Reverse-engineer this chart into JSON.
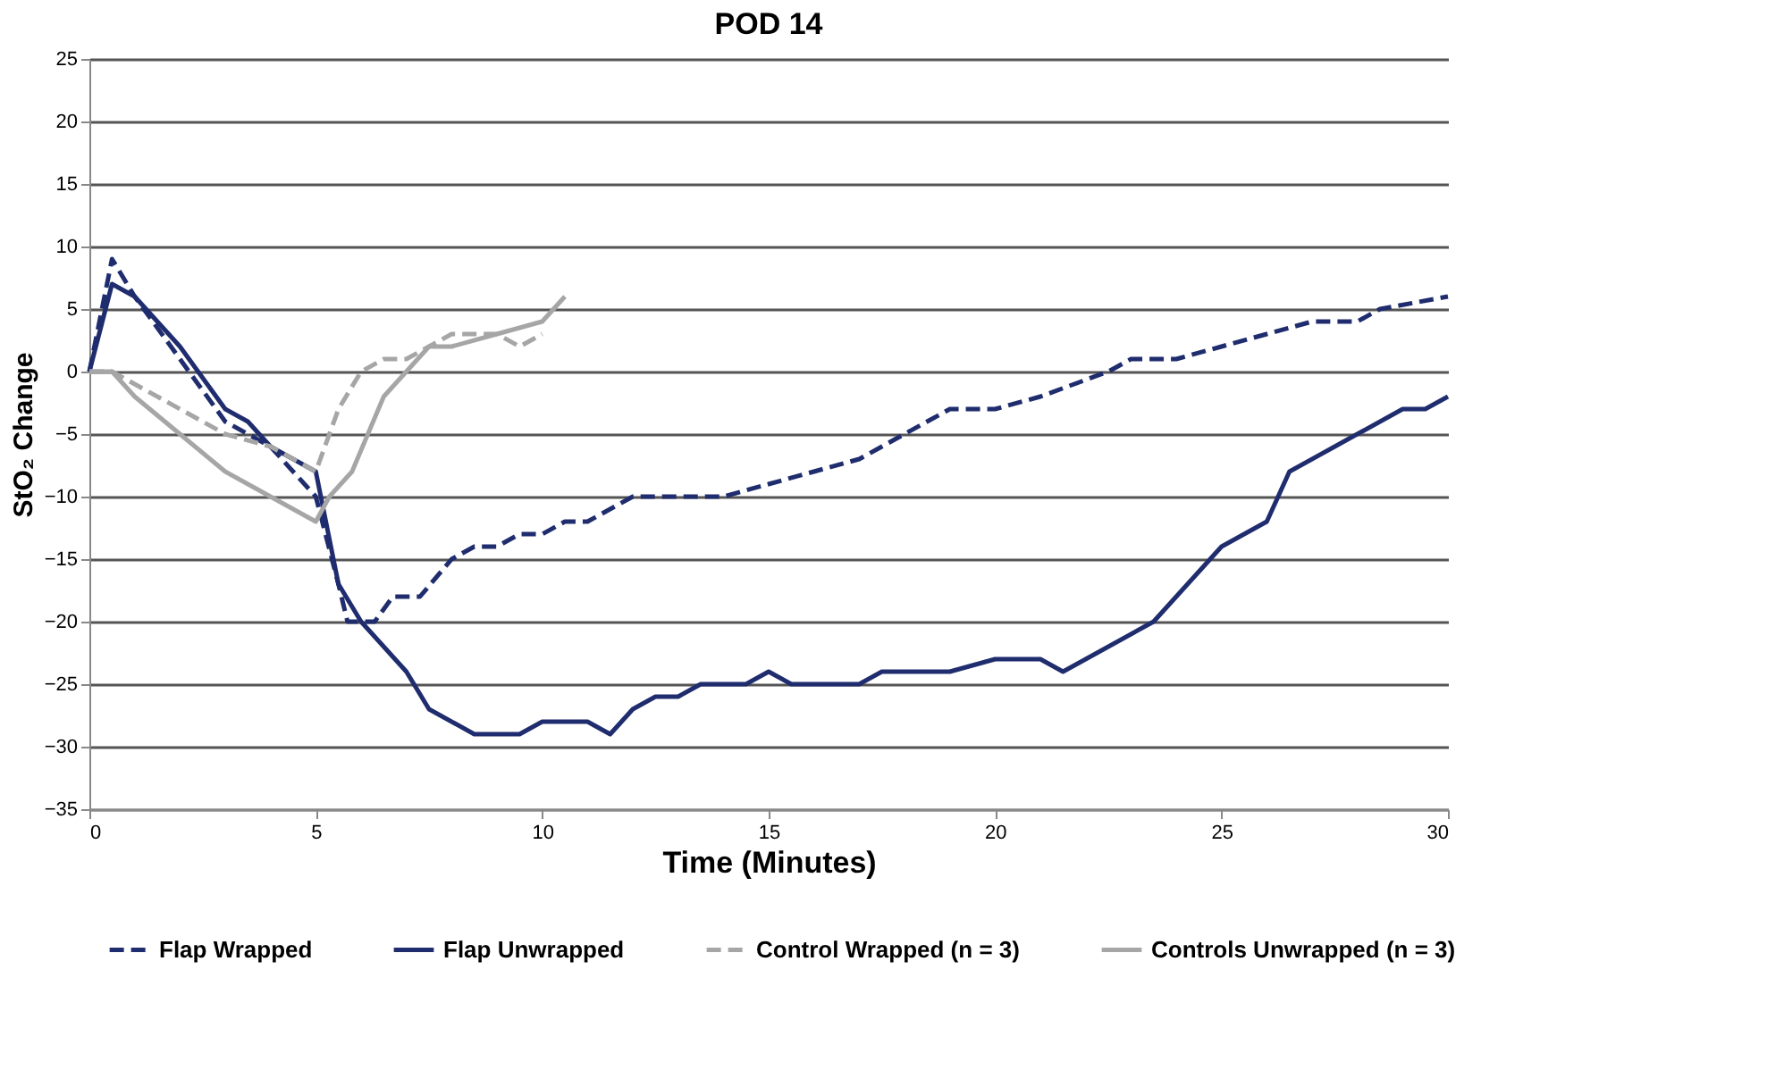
{
  "chart_data": {
    "type": "line",
    "title": "POD 14",
    "xlabel": "Time (Minutes)",
    "ylabel": "StO₂ Change",
    "xlim": [
      0,
      30
    ],
    "xticks": [
      0,
      5,
      10,
      15,
      20,
      25,
      30
    ],
    "ylim": [
      -35,
      25
    ],
    "yticks": [
      -35,
      -30,
      -25,
      -20,
      -15,
      -10,
      -5,
      0,
      5,
      10,
      15,
      20,
      25
    ],
    "grid": "y",
    "legend": "bottom",
    "marker": "none",
    "series": [
      {
        "name": "Flap Wrapped",
        "color": "#1f2d6e",
        "line_style": "dashed",
        "x": [
          0,
          0.5,
          1,
          2,
          3,
          4,
          5,
          5.5,
          5.7,
          6.3,
          6.7,
          7.3,
          8,
          8.5,
          9,
          9.5,
          10,
          10.5,
          11,
          12,
          14,
          15,
          16,
          17,
          17.5,
          19,
          20,
          21,
          22.5,
          23,
          24,
          25,
          26,
          27,
          28,
          28.5,
          30
        ],
        "values": [
          0,
          9,
          6,
          1,
          -4,
          -6,
          -10,
          -17,
          -20,
          -20,
          -18,
          -18,
          -15,
          -14,
          -14,
          -13,
          -13,
          -12,
          -12,
          -10,
          -10,
          -9,
          -8,
          -7,
          -6,
          -3,
          -3,
          -2,
          0,
          1,
          1,
          2,
          3,
          4,
          4,
          5,
          6
        ]
      },
      {
        "name": "Flap Unwrapped",
        "color": "#1f2d6e",
        "line_style": "solid",
        "x": [
          0,
          0.5,
          1,
          2,
          3,
          3.5,
          4,
          5,
          5.5,
          6,
          7,
          7.5,
          8.5,
          9.5,
          10,
          11,
          11.5,
          12,
          12.5,
          13,
          13.5,
          14.5,
          15,
          15.5,
          17,
          17.5,
          19,
          20,
          21,
          21.5,
          23.5,
          25,
          26,
          26.5,
          27.5,
          29,
          29.5,
          30
        ],
        "values": [
          0,
          7,
          6,
          2,
          -3,
          -4,
          -6,
          -8,
          -17,
          -20,
          -24,
          -27,
          -29,
          -29,
          -28,
          -28,
          -29,
          -27,
          -26,
          -26,
          -25,
          -25,
          -24,
          -25,
          -25,
          -24,
          -24,
          -23,
          -23,
          -24,
          -20,
          -14,
          -12,
          -8,
          -6,
          -3,
          -3,
          -2
        ]
      },
      {
        "name": "Control Wrapped (n = 3)",
        "color": "#a6a6a6",
        "line_style": "dashed",
        "x": [
          0,
          0.5,
          1,
          2,
          3,
          4,
          5,
          5.5,
          6,
          6.5,
          7,
          7.5,
          8,
          9,
          9.5,
          10
        ],
        "values": [
          0,
          0,
          -1,
          -3,
          -5,
          -6,
          -8,
          -3,
          0,
          1,
          1,
          2,
          3,
          3,
          2,
          3
        ]
      },
      {
        "name": "Controls Unwrapped (n = 3)",
        "color": "#a6a6a6",
        "line_style": "solid",
        "x": [
          0,
          0.5,
          1,
          2,
          3,
          4,
          5,
          5.3,
          5.8,
          6.5,
          7,
          7.5,
          8,
          9,
          10,
          10.5
        ],
        "values": [
          0,
          0,
          -2,
          -5,
          -8,
          -10,
          -12,
          -10,
          -8,
          -2,
          0,
          2,
          2,
          3,
          4,
          6
        ]
      }
    ]
  }
}
